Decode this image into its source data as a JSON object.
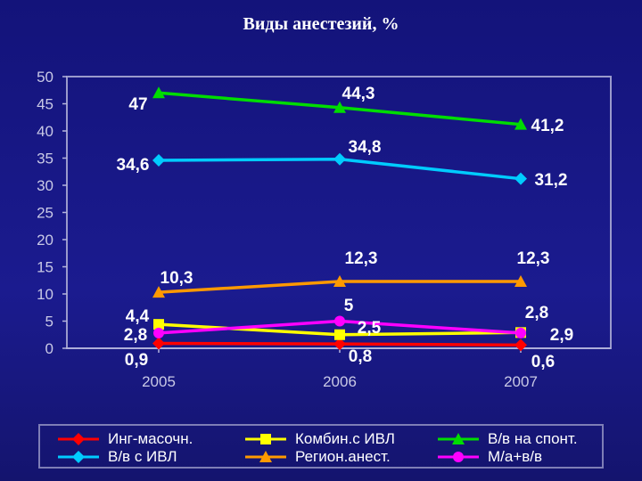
{
  "chart_data": {
    "type": "line",
    "title": "Виды анестезий, %",
    "xlabel": "",
    "ylabel": "",
    "categories": [
      "2005",
      "2006",
      "2007"
    ],
    "ylim": [
      0,
      50
    ],
    "yticks": [
      "0",
      "5",
      "10",
      "15",
      "20",
      "25",
      "30",
      "35",
      "40",
      "45",
      "50"
    ],
    "grid": false,
    "legend_position": "bottom",
    "series": [
      {
        "name": "Инг-масочн.",
        "values": [
          0.9,
          0.8,
          0.6
        ],
        "labels": [
          "0,9",
          "0,8",
          "0,6"
        ],
        "color": "#ff0000",
        "marker": "diamond"
      },
      {
        "name": "Комбин.с ИВЛ",
        "values": [
          4.4,
          2.5,
          2.9
        ],
        "labels": [
          "4,4",
          "2,5",
          "2,9"
        ],
        "color": "#ffff00",
        "marker": "square"
      },
      {
        "name": "В/в на спонт.",
        "values": [
          47,
          44.3,
          41.2
        ],
        "labels": [
          "47",
          "44,3",
          "41,2"
        ],
        "color": "#00dd00",
        "marker": "triangle"
      },
      {
        "name": "В/в с ИВЛ",
        "values": [
          34.6,
          34.8,
          31.2
        ],
        "labels": [
          "34,6",
          "34,8",
          "31,2"
        ],
        "color": "#00ccff",
        "marker": "diamond"
      },
      {
        "name": "Регион.анест.",
        "values": [
          10.3,
          12.3,
          12.3
        ],
        "labels": [
          "10,3",
          "12,3",
          "12,3"
        ],
        "color": "#ff9900",
        "marker": "triangle"
      },
      {
        "name": "М/а+в/в",
        "values": [
          2.8,
          5,
          2.8
        ],
        "labels": [
          "2,8",
          "5",
          "2,8"
        ],
        "color": "#ff00ff",
        "marker": "circle"
      }
    ]
  }
}
